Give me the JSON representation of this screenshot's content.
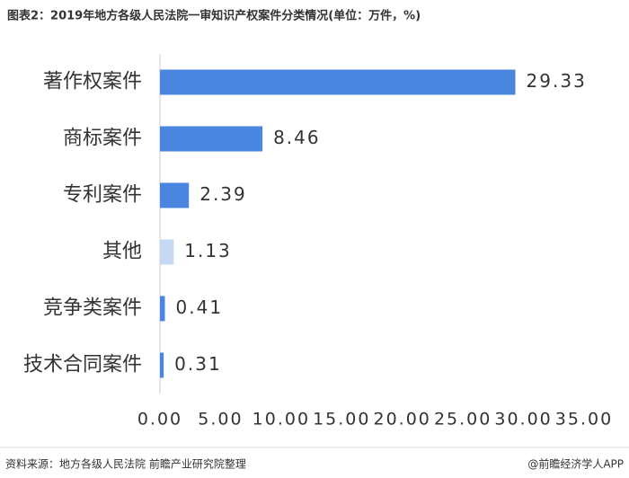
{
  "chart_data": {
    "type": "hbar",
    "title": "图表2：2019年地方各级人民法院一审知识产权案件分类情况(单位：万件，%)",
    "categories": [
      "著作权案件",
      "商标案件",
      "专利案件",
      "其他",
      "竞争类案件",
      "技术合同案件"
    ],
    "values": [
      29.33,
      8.46,
      2.39,
      1.13,
      0.41,
      0.31
    ],
    "value_labels": [
      "29.33",
      "8.46",
      "2.39",
      "1.13",
      "0.41",
      "0.31"
    ],
    "colors": [
      "#4a86e0",
      "#4a86e0",
      "#4a86e0",
      "#c5d9f5",
      "#4a86e0",
      "#4a86e0"
    ],
    "xlim": [
      0,
      35
    ],
    "xticks": [
      {
        "value": 0,
        "label": "0.00"
      },
      {
        "value": 5,
        "label": "5.00"
      },
      {
        "value": 10,
        "label": "10.00"
      },
      {
        "value": 15,
        "label": "15.00"
      },
      {
        "value": 20,
        "label": "20.00"
      },
      {
        "value": 25,
        "label": "25.00"
      },
      {
        "value": 30,
        "label": "30.00"
      },
      {
        "value": 35,
        "label": "35.00"
      }
    ],
    "grid": false,
    "source": "资料来源：地方各级人民法院 前瞻产业研究院整理",
    "credit": "@前瞻经济学人APP"
  }
}
